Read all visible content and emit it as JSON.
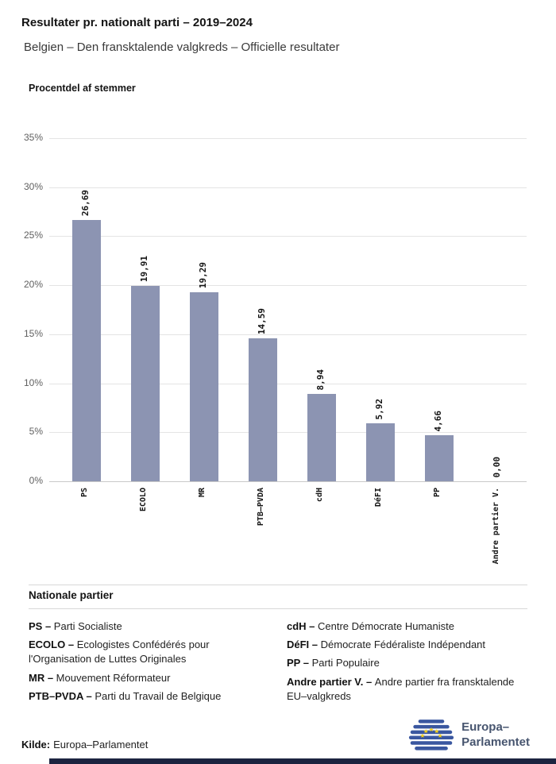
{
  "header": {
    "title": "Resultater pr. nationalt parti – 2019–2024",
    "subtitle": "Belgien – Den fransktalende valgkreds – Officielle resultater"
  },
  "chart_data": {
    "type": "bar",
    "title": "Procentdel af stemmer",
    "categories": [
      "PS",
      "ECOLO",
      "MR",
      "PTB–PVDA",
      "cdH",
      "DéFI",
      "PP",
      "Andre partier V."
    ],
    "values": [
      26.69,
      19.91,
      19.29,
      14.59,
      8.94,
      5.92,
      4.66,
      0.0
    ],
    "value_labels": [
      "26,69",
      "19,91",
      "19,29",
      "14,59",
      "8,94",
      "5,92",
      "4,66",
      "0,00"
    ],
    "ylim": [
      0,
      35
    ],
    "y_ticks": [
      0,
      5,
      10,
      15,
      20,
      25,
      30,
      35
    ],
    "y_tick_suffix": "%",
    "xlabel": "",
    "ylabel": "Procentdel af stemmer",
    "grid": true,
    "legend_position": "none",
    "bar_color": "#8C94B2"
  },
  "legend": {
    "heading": "Nationale partier",
    "columns": [
      [
        {
          "term": "PS –",
          "desc": "Parti Socialiste"
        },
        {
          "term": "ECOLO –",
          "desc": "Ecologistes Confédérés pour l'Organisation de Luttes Originales"
        },
        {
          "term": "MR –",
          "desc": "Mouvement Réformateur"
        },
        {
          "term": "PTB–PVDA –",
          "desc": "Parti du Travail de Belgique"
        }
      ],
      [
        {
          "term": "cdH –",
          "desc": "Centre Démocrate Humaniste"
        },
        {
          "term": "DéFI –",
          "desc": "Démocrate Fédéraliste Indépendant"
        },
        {
          "term": "PP –",
          "desc": "Parti Populaire"
        },
        {
          "term": "Andre partier V. –",
          "desc": "Andre partier fra fransktalende EU–valgkreds"
        }
      ]
    ]
  },
  "footer": {
    "source_label": "Kilde:",
    "source_value": "Europa–Parlamentet",
    "logo_line1": "Europa–",
    "logo_line2": "Parlamentet"
  },
  "colors": {
    "bar": "#8C94B2",
    "grid": "#E4E4E4",
    "axis_text": "#5F5F5F",
    "logo_blue": "#3A57A0",
    "star_yellow": "#F7D117",
    "logo_text": "#47556F",
    "bottom_bar": "#1C2440"
  }
}
